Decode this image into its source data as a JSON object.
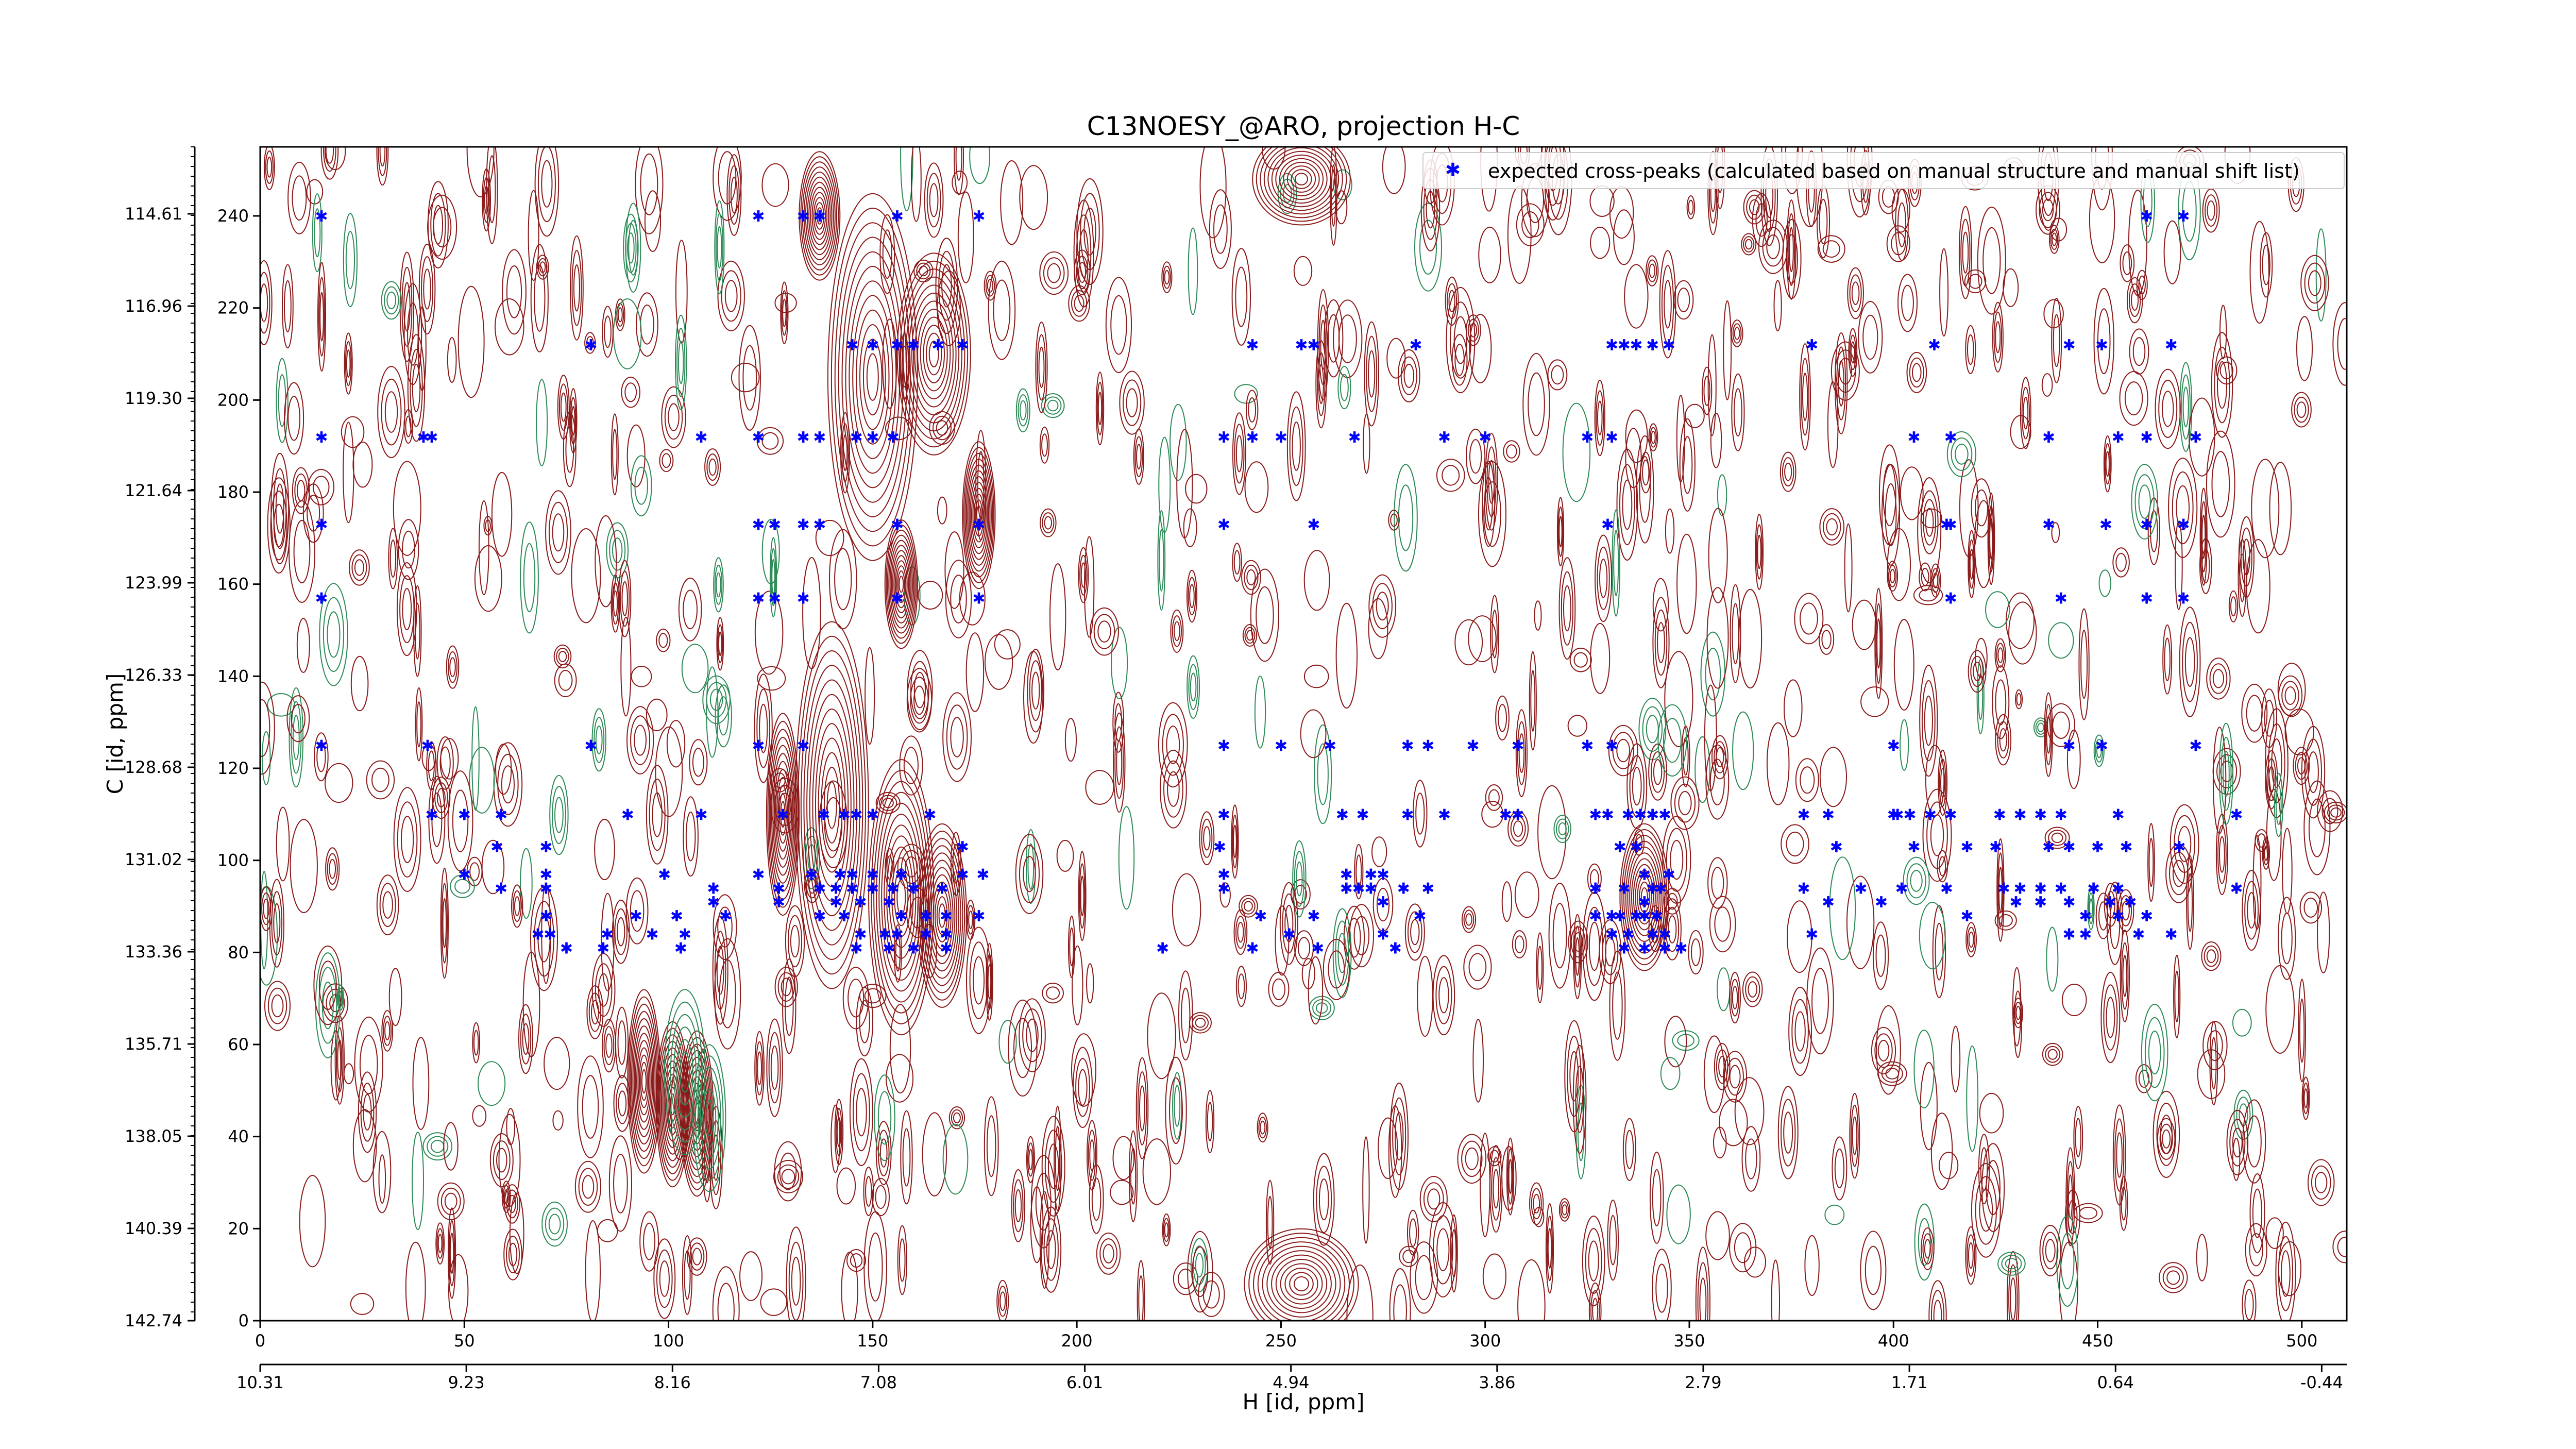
{
  "chart_data": {
    "type": "scatter",
    "title": "C13NOESY_@ARO, projection H-C",
    "xlabel": "H [id, ppm]",
    "ylabel": "C [id, ppm]",
    "xlim": [
      0,
      511
    ],
    "ylim": [
      0,
      255
    ],
    "x_ticks": [
      0,
      50,
      100,
      150,
      200,
      250,
      300,
      350,
      400,
      450,
      500
    ],
    "y_ticks": [
      0,
      20,
      40,
      60,
      80,
      100,
      120,
      140,
      160,
      180,
      200,
      220,
      240
    ],
    "x_ppm_ticks": [
      "10.31",
      "9.23",
      "8.16",
      "7.08",
      "6.01",
      "4.94",
      "3.86",
      "2.79",
      "1.71",
      "0.64",
      "-0.44"
    ],
    "y_ppm_ticks": [
      "114.61",
      "116.96",
      "119.30",
      "121.64",
      "123.99",
      "126.33",
      "128.68",
      "131.02",
      "133.36",
      "135.71",
      "138.05",
      "140.39",
      "142.74"
    ],
    "marker_color": "#0000ff",
    "contour_positive_color": "#8b1a1a",
    "contour_negative_color": "#2e8b57",
    "grid": false,
    "legend": {
      "placement": "top-right",
      "entries": [
        "expected cross-peaks (calculated based on manual structure and manual shift list)"
      ]
    },
    "series": [
      {
        "name": "expected cross-peaks (calculated based on manual structure and manual shift list)",
        "points": [
          [
            15,
            240
          ],
          [
            122,
            240
          ],
          [
            133,
            240
          ],
          [
            137,
            240
          ],
          [
            156,
            240
          ],
          [
            176,
            240
          ],
          [
            462,
            240
          ],
          [
            471,
            240
          ],
          [
            81,
            212
          ],
          [
            145,
            212
          ],
          [
            150,
            212
          ],
          [
            156,
            212
          ],
          [
            160,
            212
          ],
          [
            166,
            212
          ],
          [
            172,
            212
          ],
          [
            243,
            212
          ],
          [
            255,
            212
          ],
          [
            258,
            212
          ],
          [
            283,
            212
          ],
          [
            331,
            212
          ],
          [
            334,
            212
          ],
          [
            337,
            212
          ],
          [
            341,
            212
          ],
          [
            345,
            212
          ],
          [
            380,
            212
          ],
          [
            410,
            212
          ],
          [
            443,
            212
          ],
          [
            451,
            212
          ],
          [
            468,
            212
          ],
          [
            15,
            192
          ],
          [
            40,
            192
          ],
          [
            42,
            192
          ],
          [
            108,
            192
          ],
          [
            122,
            192
          ],
          [
            133,
            192
          ],
          [
            137,
            192
          ],
          [
            146,
            192
          ],
          [
            150,
            192
          ],
          [
            155,
            192
          ],
          [
            236,
            192
          ],
          [
            243,
            192
          ],
          [
            250,
            192
          ],
          [
            268,
            192
          ],
          [
            290,
            192
          ],
          [
            300,
            192
          ],
          [
            325,
            192
          ],
          [
            331,
            192
          ],
          [
            405,
            192
          ],
          [
            414,
            192
          ],
          [
            438,
            192
          ],
          [
            455,
            192
          ],
          [
            462,
            192
          ],
          [
            474,
            192
          ],
          [
            15,
            173
          ],
          [
            122,
            173
          ],
          [
            126,
            173
          ],
          [
            133,
            173
          ],
          [
            137,
            173
          ],
          [
            156,
            173
          ],
          [
            176,
            173
          ],
          [
            236,
            173
          ],
          [
            258,
            173
          ],
          [
            330,
            173
          ],
          [
            413,
            173
          ],
          [
            414,
            173
          ],
          [
            438,
            173
          ],
          [
            452,
            173
          ],
          [
            462,
            173
          ],
          [
            471,
            173
          ],
          [
            15,
            157
          ],
          [
            122,
            157
          ],
          [
            126,
            157
          ],
          [
            133,
            157
          ],
          [
            156,
            157
          ],
          [
            176,
            157
          ],
          [
            414,
            157
          ],
          [
            441,
            157
          ],
          [
            462,
            157
          ],
          [
            471,
            157
          ],
          [
            15,
            125
          ],
          [
            41,
            125
          ],
          [
            81,
            125
          ],
          [
            122,
            125
          ],
          [
            133,
            125
          ],
          [
            236,
            125
          ],
          [
            250,
            125
          ],
          [
            262,
            125
          ],
          [
            281,
            125
          ],
          [
            286,
            125
          ],
          [
            297,
            125
          ],
          [
            308,
            125
          ],
          [
            325,
            125
          ],
          [
            331,
            125
          ],
          [
            400,
            125
          ],
          [
            443,
            125
          ],
          [
            451,
            125
          ],
          [
            474,
            125
          ],
          [
            42,
            110
          ],
          [
            50,
            110
          ],
          [
            59,
            110
          ],
          [
            90,
            110
          ],
          [
            108,
            110
          ],
          [
            128,
            110
          ],
          [
            138,
            110
          ],
          [
            143,
            110
          ],
          [
            146,
            110
          ],
          [
            150,
            110
          ],
          [
            164,
            110
          ],
          [
            236,
            110
          ],
          [
            265,
            110
          ],
          [
            270,
            110
          ],
          [
            281,
            110
          ],
          [
            290,
            110
          ],
          [
            305,
            110
          ],
          [
            308,
            110
          ],
          [
            327,
            110
          ],
          [
            330,
            110
          ],
          [
            335,
            110
          ],
          [
            338,
            110
          ],
          [
            341,
            110
          ],
          [
            344,
            110
          ],
          [
            378,
            110
          ],
          [
            384,
            110
          ],
          [
            400,
            110
          ],
          [
            401,
            110
          ],
          [
            404,
            110
          ],
          [
            409,
            110
          ],
          [
            414,
            110
          ],
          [
            426,
            110
          ],
          [
            431,
            110
          ],
          [
            436,
            110
          ],
          [
            441,
            110
          ],
          [
            455,
            110
          ],
          [
            484,
            110
          ],
          [
            58,
            103
          ],
          [
            70,
            103
          ],
          [
            172,
            103
          ],
          [
            235,
            103
          ],
          [
            333,
            103
          ],
          [
            337,
            103
          ],
          [
            386,
            103
          ],
          [
            405,
            103
          ],
          [
            418,
            103
          ],
          [
            425,
            103
          ],
          [
            438,
            103
          ],
          [
            443,
            103
          ],
          [
            450,
            103
          ],
          [
            457,
            103
          ],
          [
            470,
            103
          ],
          [
            50,
            97
          ],
          [
            70,
            97
          ],
          [
            99,
            97
          ],
          [
            122,
            97
          ],
          [
            135,
            97
          ],
          [
            142,
            97
          ],
          [
            145,
            97
          ],
          [
            150,
            97
          ],
          [
            157,
            97
          ],
          [
            172,
            97
          ],
          [
            177,
            97
          ],
          [
            236,
            97
          ],
          [
            266,
            97
          ],
          [
            272,
            97
          ],
          [
            275,
            97
          ],
          [
            339,
            97
          ],
          [
            345,
            97
          ],
          [
            59,
            94
          ],
          [
            70,
            94
          ],
          [
            111,
            94
          ],
          [
            127,
            94
          ],
          [
            137,
            94
          ],
          [
            141,
            94
          ],
          [
            145,
            94
          ],
          [
            150,
            94
          ],
          [
            155,
            94
          ],
          [
            160,
            94
          ],
          [
            167,
            94
          ],
          [
            236,
            94
          ],
          [
            266,
            94
          ],
          [
            269,
            94
          ],
          [
            272,
            94
          ],
          [
            280,
            94
          ],
          [
            286,
            94
          ],
          [
            327,
            94
          ],
          [
            334,
            94
          ],
          [
            341,
            94
          ],
          [
            343,
            94
          ],
          [
            378,
            94
          ],
          [
            392,
            94
          ],
          [
            402,
            94
          ],
          [
            413,
            94
          ],
          [
            427,
            94
          ],
          [
            431,
            94
          ],
          [
            436,
            94
          ],
          [
            441,
            94
          ],
          [
            449,
            94
          ],
          [
            455,
            94
          ],
          [
            484,
            94
          ],
          [
            111,
            91
          ],
          [
            127,
            91
          ],
          [
            141,
            91
          ],
          [
            147,
            91
          ],
          [
            154,
            91
          ],
          [
            275,
            91
          ],
          [
            339,
            91
          ],
          [
            384,
            91
          ],
          [
            397,
            91
          ],
          [
            430,
            91
          ],
          [
            436,
            91
          ],
          [
            443,
            91
          ],
          [
            453,
            91
          ],
          [
            458,
            91
          ],
          [
            70,
            88
          ],
          [
            92,
            88
          ],
          [
            102,
            88
          ],
          [
            114,
            88
          ],
          [
            137,
            88
          ],
          [
            143,
            88
          ],
          [
            157,
            88
          ],
          [
            163,
            88
          ],
          [
            168,
            88
          ],
          [
            176,
            88
          ],
          [
            245,
            88
          ],
          [
            258,
            88
          ],
          [
            284,
            88
          ],
          [
            327,
            88
          ],
          [
            331,
            88
          ],
          [
            333,
            88
          ],
          [
            337,
            88
          ],
          [
            339,
            88
          ],
          [
            342,
            88
          ],
          [
            418,
            88
          ],
          [
            447,
            88
          ],
          [
            455,
            88
          ],
          [
            462,
            88
          ],
          [
            68,
            84
          ],
          [
            71,
            84
          ],
          [
            85,
            84
          ],
          [
            96,
            84
          ],
          [
            104,
            84
          ],
          [
            147,
            84
          ],
          [
            153,
            84
          ],
          [
            156,
            84
          ],
          [
            163,
            84
          ],
          [
            168,
            84
          ],
          [
            252,
            84
          ],
          [
            275,
            84
          ],
          [
            331,
            84
          ],
          [
            335,
            84
          ],
          [
            341,
            84
          ],
          [
            344,
            84
          ],
          [
            380,
            84
          ],
          [
            443,
            84
          ],
          [
            447,
            84
          ],
          [
            460,
            84
          ],
          [
            468,
            84
          ],
          [
            75,
            81
          ],
          [
            84,
            81
          ],
          [
            103,
            81
          ],
          [
            146,
            81
          ],
          [
            154,
            81
          ],
          [
            160,
            81
          ],
          [
            168,
            81
          ],
          [
            221,
            81
          ],
          [
            243,
            81
          ],
          [
            259,
            81
          ],
          [
            278,
            81
          ],
          [
            334,
            81
          ],
          [
            339,
            81
          ],
          [
            344,
            81
          ],
          [
            348,
            81
          ]
        ]
      }
    ]
  }
}
